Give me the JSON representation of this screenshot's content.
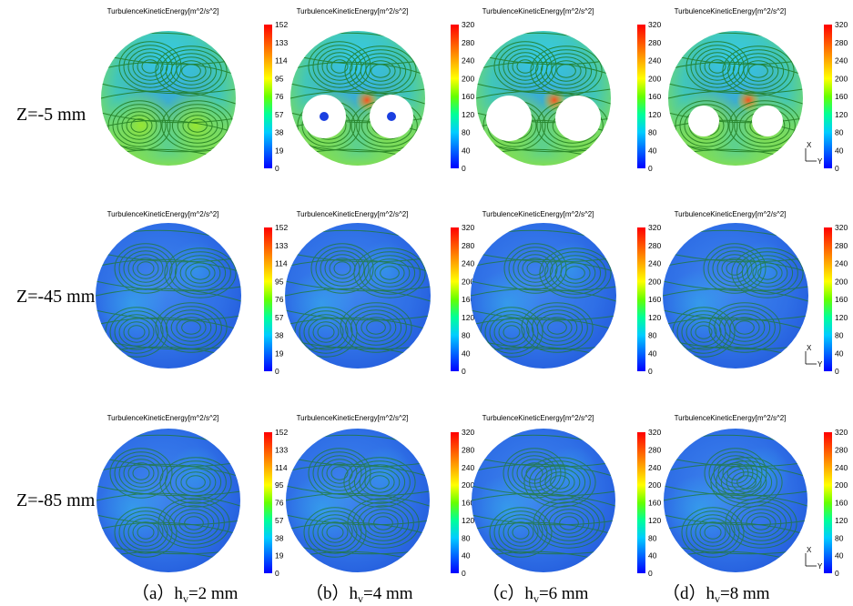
{
  "figure": {
    "row_labels": [
      "Z=-5 mm",
      "Z=-45 mm",
      "Z=-85 mm"
    ],
    "column_labels": [
      {
        "prefix": "（a）h",
        "sub": "v",
        "suffix": "=2 mm"
      },
      {
        "prefix": "（b）h",
        "sub": "v",
        "suffix": "=4 mm"
      },
      {
        "prefix": "（c）h",
        "sub": "v",
        "suffix": "=6 mm"
      },
      {
        "prefix": "（d）h",
        "sub": "v",
        "suffix": "=8 mm"
      }
    ],
    "colorbar_title": "TurbulenceKineticEnergy[m^2/s^2]",
    "colorbar_ticks_a": [
      "152",
      "133",
      "114",
      "95",
      "76",
      "57",
      "38",
      "19",
      "0"
    ],
    "colorbar_ticks_bcd": [
      "320",
      "280",
      "240",
      "200",
      "160",
      "120",
      "80",
      "40",
      "0"
    ],
    "axis_labels": {
      "x": "X",
      "y": "Y"
    },
    "colormap": [
      "#0000ff",
      "#0066ff",
      "#00ccff",
      "#00ff99",
      "#66ff00",
      "#ffff00",
      "#ffaa00",
      "#ff5500",
      "#ff0000"
    ],
    "field_colors": {
      "low": "#2f6fe6",
      "mid": "#33d4ee",
      "high": "#9be82a",
      "peak": "#ff4a1a",
      "streamline": "#1f7a1f"
    }
  }
}
